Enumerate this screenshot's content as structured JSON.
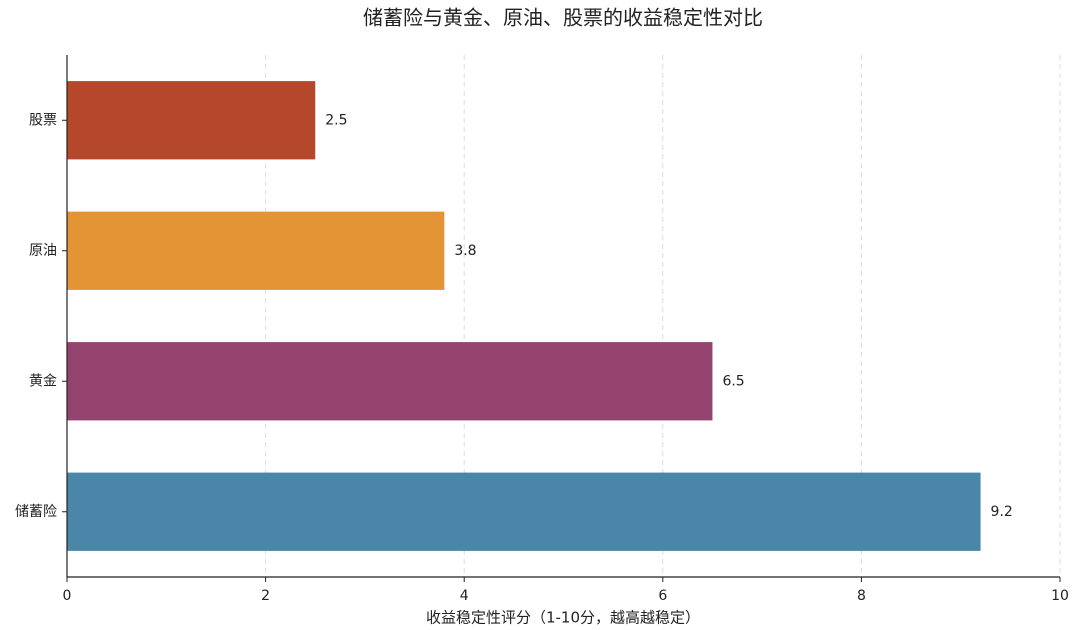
{
  "chart_data": {
    "type": "bar",
    "orientation": "horizontal",
    "title": "储蓄险与黄金、原油、股票的收益稳定性对比",
    "x_label": "收益稳定性评分（1-10分，越高越稳定）",
    "categories": [
      "股票",
      "原油",
      "黄金",
      "储蓄险"
    ],
    "values": [
      2.5,
      3.8,
      6.5,
      9.2
    ],
    "colors": [
      "#b5472b",
      "#e39535",
      "#94426e",
      "#4a86a8"
    ],
    "xlim": [
      0,
      10
    ],
    "xticks": [
      0,
      2,
      4,
      6,
      8,
      10
    ],
    "grid": true
  }
}
